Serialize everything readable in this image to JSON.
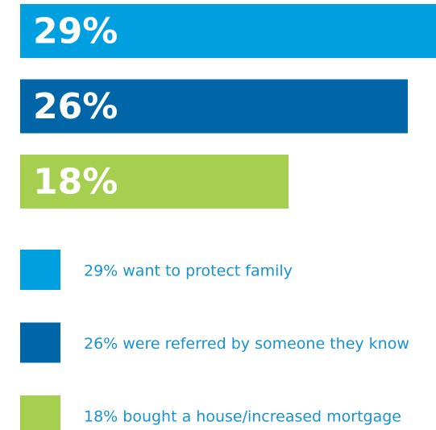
{
  "chart_data": {
    "type": "bar",
    "categories": [
      "29% want to protect family",
      "26% were referred by someone they know",
      "18% bought a house/increased mortgage"
    ],
    "values": [
      29,
      26,
      18
    ],
    "value_labels": [
      "29%",
      "26%",
      "18%"
    ],
    "colors": [
      "#009fe0",
      "#0066a8",
      "#a6cf4f"
    ]
  }
}
